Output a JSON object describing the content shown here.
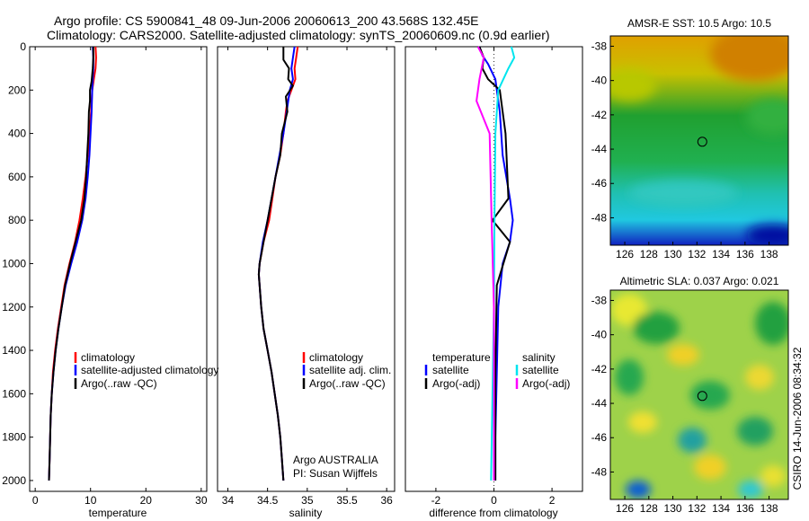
{
  "header": {
    "title_line1": "Argo profile: CS 5900841_48 09-Jun-2006 20060613_200 43.568S 132.45E",
    "title_line2": "Climatology: CARS2000. Satellite-adjusted climatology: synTS_20060609.nc (0.9d earlier)"
  },
  "side_stamp": "CSIRO 14-Jun-2006 08:34:32",
  "colors": {
    "climatology": "#ff0000",
    "satellite": "#0000ff",
    "argo": "#000000",
    "satellite_diff_salinity": "#00e5ee",
    "argo_adj_salinity": "#ff00ff"
  },
  "chart_data": [
    {
      "id": "temperature",
      "type": "line",
      "xlabel": "temperature",
      "xlim": [
        -1,
        31
      ],
      "ylim": [
        0,
        2050
      ],
      "yreversed": true,
      "xticks": [
        0,
        10,
        20,
        30
      ],
      "yticks": [
        0,
        200,
        400,
        600,
        800,
        1000,
        1200,
        1400,
        1600,
        1800,
        2000
      ],
      "legend": {
        "placement": "middle-right",
        "items": [
          "climatology",
          "satellite-adjusted climatology",
          "Argo(..raw -QC)"
        ]
      },
      "series": [
        {
          "name": "climatology",
          "color": "#ff0000",
          "points": [
            [
              10.9,
              0
            ],
            [
              11.0,
              50
            ],
            [
              10.9,
              100
            ],
            [
              10.6,
              150
            ],
            [
              10.3,
              200
            ],
            [
              10.1,
              300
            ],
            [
              9.8,
              400
            ],
            [
              9.5,
              500
            ],
            [
              9.1,
              600
            ],
            [
              8.6,
              700
            ],
            [
              8.0,
              800
            ],
            [
              7.2,
              900
            ],
            [
              6.2,
              1000
            ],
            [
              5.3,
              1100
            ],
            [
              4.7,
              1200
            ],
            [
              4.1,
              1300
            ],
            [
              3.6,
              1400
            ],
            [
              3.2,
              1500
            ],
            [
              3.0,
              1600
            ],
            [
              2.8,
              1700
            ],
            [
              2.7,
              1800
            ],
            [
              2.6,
              1900
            ],
            [
              2.5,
              2000
            ]
          ]
        },
        {
          "name": "satellite-adjusted climatology",
          "color": "#0000ff",
          "points": [
            [
              10.4,
              0
            ],
            [
              10.5,
              50
            ],
            [
              10.5,
              100
            ],
            [
              10.4,
              150
            ],
            [
              10.3,
              200
            ],
            [
              10.2,
              300
            ],
            [
              10.0,
              400
            ],
            [
              9.8,
              500
            ],
            [
              9.5,
              600
            ],
            [
              9.1,
              700
            ],
            [
              8.5,
              800
            ],
            [
              7.6,
              900
            ],
            [
              6.5,
              1000
            ],
            [
              5.5,
              1100
            ],
            [
              4.8,
              1200
            ],
            [
              4.2,
              1300
            ],
            [
              3.7,
              1400
            ],
            [
              3.3,
              1500
            ],
            [
              3.0,
              1600
            ],
            [
              2.8,
              1700
            ],
            [
              2.7,
              1800
            ],
            [
              2.6,
              1900
            ],
            [
              2.5,
              2000
            ]
          ]
        },
        {
          "name": "Argo(..raw -QC)",
          "color": "#000000",
          "points": [
            [
              10.5,
              0
            ],
            [
              10.5,
              50
            ],
            [
              10.4,
              100
            ],
            [
              10.2,
              160
            ],
            [
              9.9,
              200
            ],
            [
              9.9,
              250
            ],
            [
              9.7,
              300
            ],
            [
              9.6,
              400
            ],
            [
              9.4,
              500
            ],
            [
              9.2,
              600
            ],
            [
              8.9,
              700
            ],
            [
              8.3,
              800
            ],
            [
              7.3,
              900
            ],
            [
              6.3,
              1000
            ],
            [
              5.4,
              1100
            ],
            [
              4.8,
              1200
            ],
            [
              4.2,
              1300
            ],
            [
              3.7,
              1400
            ],
            [
              3.3,
              1500
            ],
            [
              3.0,
              1600
            ],
            [
              2.8,
              1700
            ],
            [
              2.7,
              1800
            ],
            [
              2.6,
              1900
            ],
            [
              2.5,
              2000
            ]
          ]
        }
      ]
    },
    {
      "id": "salinity",
      "type": "line",
      "xlabel": "salinity",
      "xlim": [
        33.87,
        36.1
      ],
      "ylim": [
        0,
        2050
      ],
      "yreversed": true,
      "xticks": [
        34,
        34.5,
        35,
        35.5,
        36
      ],
      "legend": {
        "placement": "middle-right",
        "items": [
          "climatology",
          "satellite adj. clim.",
          "Argo(..raw -QC)"
        ]
      },
      "annotation": [
        "Argo AUSTRALIA",
        "PI: Susan Wijffels"
      ],
      "series": [
        {
          "name": "climatology",
          "color": "#ff0000",
          "points": [
            [
              34.88,
              0
            ],
            [
              34.86,
              50
            ],
            [
              34.84,
              100
            ],
            [
              34.85,
              150
            ],
            [
              34.8,
              200
            ],
            [
              34.75,
              250
            ],
            [
              34.73,
              300
            ],
            [
              34.7,
              400
            ],
            [
              34.66,
              500
            ],
            [
              34.6,
              600
            ],
            [
              34.56,
              700
            ],
            [
              34.52,
              800
            ],
            [
              34.45,
              900
            ],
            [
              34.4,
              1000
            ],
            [
              34.39,
              1050
            ],
            [
              34.4,
              1100
            ],
            [
              34.42,
              1200
            ],
            [
              34.45,
              1300
            ],
            [
              34.5,
              1400
            ],
            [
              34.55,
              1500
            ],
            [
              34.59,
              1600
            ],
            [
              34.63,
              1700
            ],
            [
              34.66,
              1800
            ],
            [
              34.68,
              1900
            ],
            [
              34.7,
              2000
            ]
          ]
        },
        {
          "name": "satellite adj. clim.",
          "color": "#0000ff",
          "points": [
            [
              34.84,
              0
            ],
            [
              34.82,
              50
            ],
            [
              34.8,
              100
            ],
            [
              34.82,
              150
            ],
            [
              34.78,
              200
            ],
            [
              34.74,
              300
            ],
            [
              34.7,
              400
            ],
            [
              34.65,
              500
            ],
            [
              34.6,
              600
            ],
            [
              34.55,
              700
            ],
            [
              34.5,
              800
            ],
            [
              34.44,
              900
            ],
            [
              34.4,
              1000
            ],
            [
              34.39,
              1050
            ],
            [
              34.4,
              1100
            ],
            [
              34.42,
              1200
            ],
            [
              34.45,
              1300
            ],
            [
              34.5,
              1400
            ],
            [
              34.55,
              1500
            ],
            [
              34.59,
              1600
            ],
            [
              34.63,
              1700
            ],
            [
              34.66,
              1800
            ],
            [
              34.68,
              1900
            ],
            [
              34.7,
              2000
            ]
          ]
        },
        {
          "name": "Argo(..raw -QC)",
          "color": "#000000",
          "points": [
            [
              34.7,
              0
            ],
            [
              34.7,
              60
            ],
            [
              34.77,
              100
            ],
            [
              34.76,
              150
            ],
            [
              34.82,
              180
            ],
            [
              34.73,
              230
            ],
            [
              34.75,
              300
            ],
            [
              34.68,
              400
            ],
            [
              34.66,
              500
            ],
            [
              34.6,
              600
            ],
            [
              34.55,
              700
            ],
            [
              34.5,
              800
            ],
            [
              34.45,
              900
            ],
            [
              34.4,
              1000
            ],
            [
              34.39,
              1050
            ],
            [
              34.4,
              1100
            ],
            [
              34.42,
              1200
            ],
            [
              34.45,
              1300
            ],
            [
              34.5,
              1400
            ],
            [
              34.55,
              1500
            ],
            [
              34.59,
              1600
            ],
            [
              34.63,
              1700
            ],
            [
              34.66,
              1800
            ],
            [
              34.68,
              1900
            ],
            [
              34.7,
              2000
            ]
          ]
        }
      ]
    },
    {
      "id": "difference",
      "type": "line",
      "xlabel": "difference from climatology",
      "xlim": [
        -3.05,
        3.05
      ],
      "ylim": [
        0,
        2050
      ],
      "yreversed": true,
      "xticks": [
        -2,
        0,
        2
      ],
      "zero_line": true,
      "legend": {
        "placement": "middle",
        "groups": [
          {
            "title": "temperature",
            "items": [
              "satellite",
              "Argo(-adj)"
            ]
          },
          {
            "title": "salinity",
            "items": [
              "satellite",
              "Argo(-adj)"
            ]
          }
        ]
      },
      "series": [
        {
          "name": "temperature satellite",
          "color": "#0000ff",
          "points": [
            [
              -0.5,
              0
            ],
            [
              -0.4,
              40
            ],
            [
              -0.2,
              80
            ],
            [
              0.05,
              150
            ],
            [
              0.2,
              300
            ],
            [
              0.3,
              500
            ],
            [
              0.55,
              700
            ],
            [
              0.65,
              800
            ],
            [
              0.55,
              900
            ],
            [
              0.3,
              1000
            ],
            [
              0.15,
              1200
            ],
            [
              0.1,
              1500
            ],
            [
              0.05,
              1800
            ],
            [
              0.05,
              2000
            ]
          ]
        },
        {
          "name": "temperature Argo(-adj)",
          "color": "#000000",
          "points": [
            [
              -0.5,
              0
            ],
            [
              -0.35,
              50
            ],
            [
              -0.4,
              100
            ],
            [
              -0.2,
              150
            ],
            [
              0.2,
              200
            ],
            [
              0.4,
              400
            ],
            [
              0.5,
              700
            ],
            [
              -0.05,
              800
            ],
            [
              0.55,
              900
            ],
            [
              0.1,
              1100
            ],
            [
              0.05,
              1500
            ],
            [
              0.05,
              2000
            ]
          ]
        },
        {
          "name": "salinity satellite",
          "color": "#00e5ee",
          "points": [
            [
              0.6,
              0
            ],
            [
              0.7,
              50
            ],
            [
              0.5,
              100
            ],
            [
              0.15,
              200
            ],
            [
              0.05,
              400
            ],
            [
              0.02,
              800
            ],
            [
              0.0,
              1200
            ],
            [
              -0.05,
              1600
            ],
            [
              -0.1,
              2000
            ]
          ]
        },
        {
          "name": "salinity Argo(-adj)",
          "color": "#ff00ff",
          "points": [
            [
              -0.55,
              0
            ],
            [
              -0.35,
              50
            ],
            [
              -0.5,
              150
            ],
            [
              -0.6,
              250
            ],
            [
              -0.15,
              400
            ],
            [
              -0.08,
              800
            ],
            [
              0.0,
              1200
            ],
            [
              0.0,
              1600
            ],
            [
              0.0,
              2000
            ]
          ]
        }
      ]
    },
    {
      "id": "sst_map",
      "type": "heatmap",
      "title": "AMSR-E SST: 10.5 Argo: 10.5",
      "xlim": [
        124.8,
        139.6
      ],
      "ylim": [
        -49.6,
        -37.4
      ],
      "xticks": [
        126,
        128,
        130,
        132,
        134,
        136,
        138
      ],
      "yticks": [
        -38,
        -40,
        -42,
        -44,
        -46,
        -48
      ],
      "marker": [
        132.45,
        -43.568
      ]
    },
    {
      "id": "sla_map",
      "type": "heatmap",
      "title": "Altimetric SLA: 0.037 Argo: 0.021",
      "xlim": [
        124.8,
        139.6
      ],
      "ylim": [
        -49.6,
        -37.4
      ],
      "xticks": [
        126,
        128,
        130,
        132,
        134,
        136,
        138
      ],
      "yticks": [
        -38,
        -40,
        -42,
        -44,
        -46,
        -48
      ],
      "marker": [
        132.45,
        -43.568
      ]
    }
  ]
}
